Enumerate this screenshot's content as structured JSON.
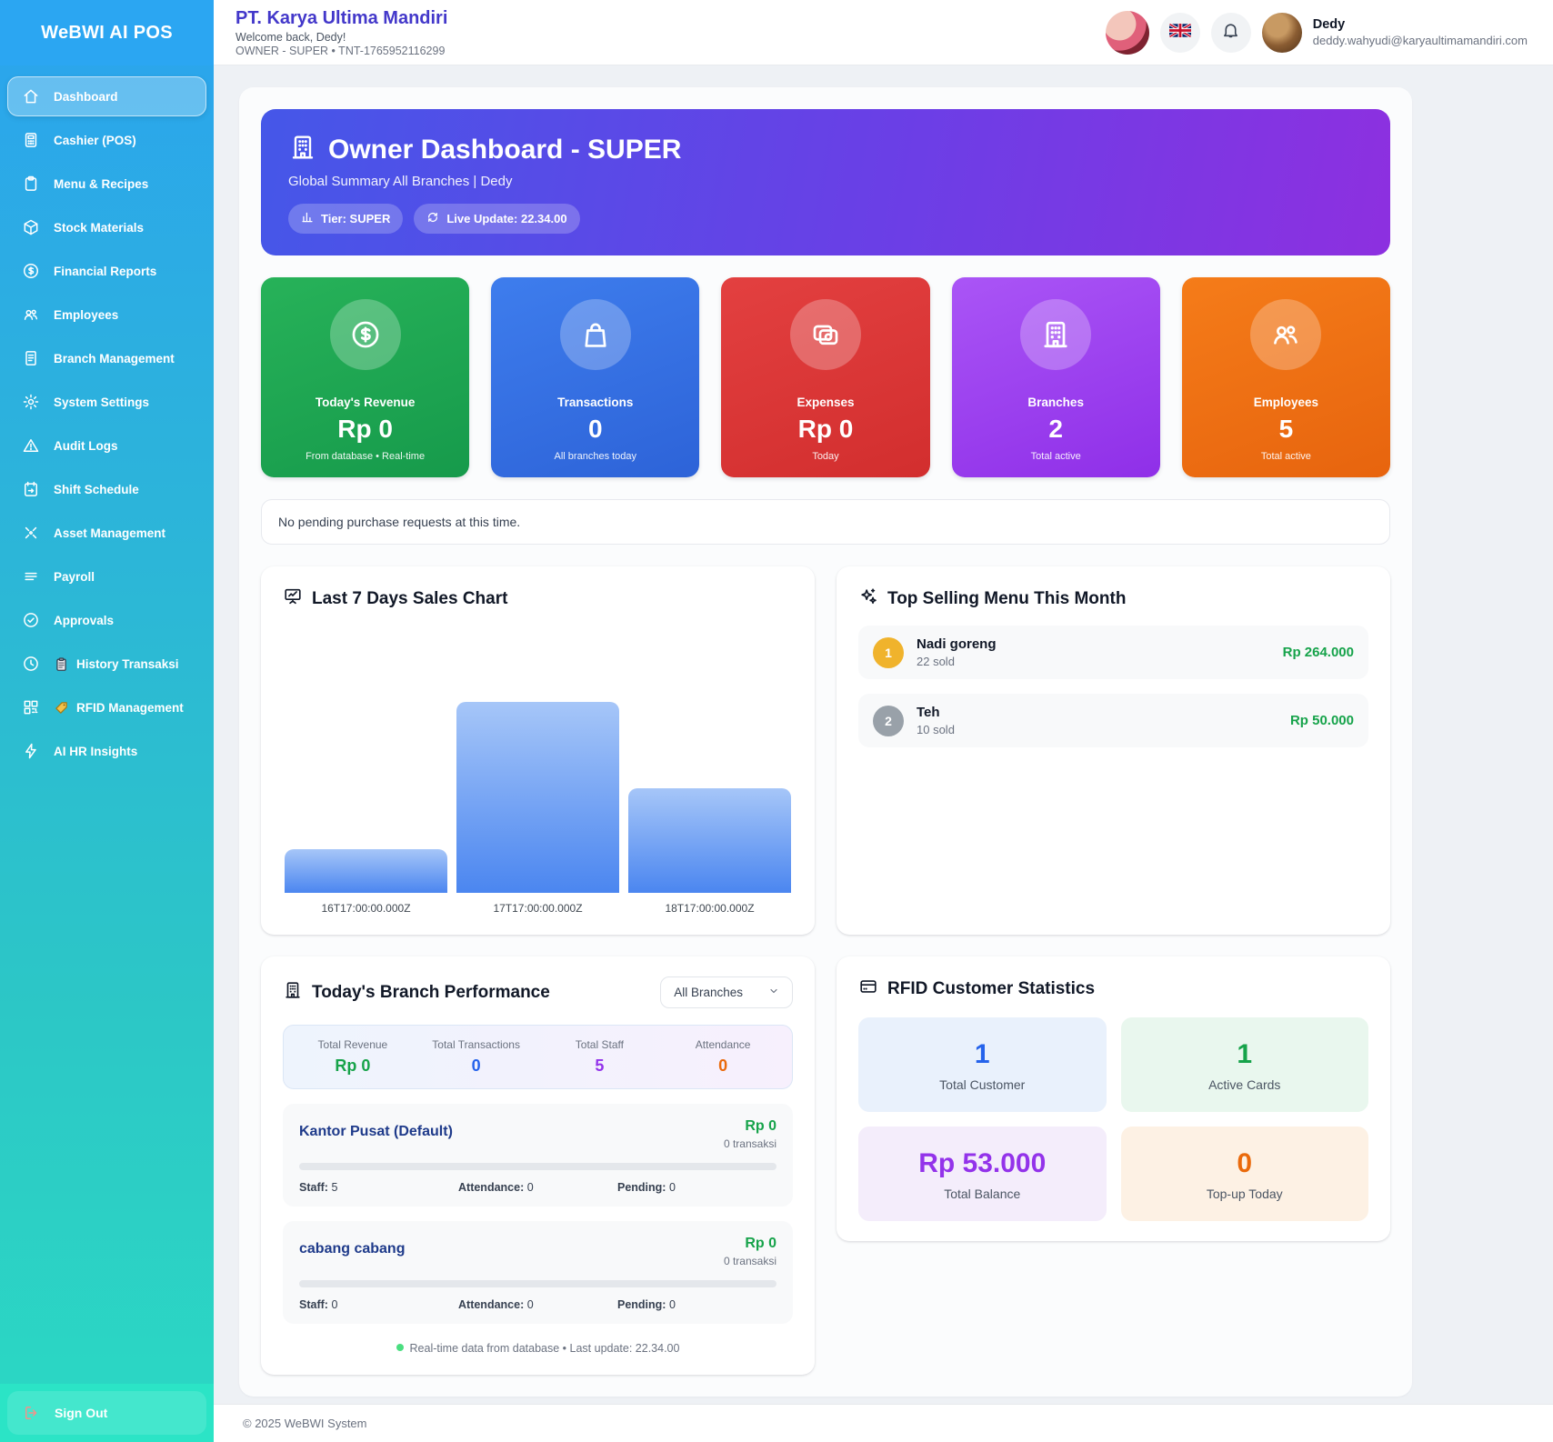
{
  "sidebar": {
    "logo": "WeBWI AI POS",
    "items": [
      {
        "label": "Dashboard",
        "icon": "home-icon",
        "active": true
      },
      {
        "label": "Cashier (POS)",
        "icon": "calculator-icon"
      },
      {
        "label": "Menu & Recipes",
        "icon": "clipboard-icon"
      },
      {
        "label": "Stock Materials",
        "icon": "cube-icon"
      },
      {
        "label": "Financial Reports",
        "icon": "dollar-circle-icon"
      },
      {
        "label": "Employees",
        "icon": "people-icon"
      },
      {
        "label": "Branch Management",
        "icon": "document-icon"
      },
      {
        "label": "System Settings",
        "icon": "gear-icon"
      },
      {
        "label": "Audit Logs",
        "icon": "warning-triangle-icon"
      },
      {
        "label": "Shift Schedule",
        "icon": "calendar-icon"
      },
      {
        "label": "Asset Management",
        "icon": "asset-arrows-icon"
      },
      {
        "label": "Payroll",
        "icon": "lines-icon"
      },
      {
        "label": "Approvals",
        "icon": "check-circle-icon"
      },
      {
        "label": "History Transaksi",
        "icon": "clock-icon",
        "extra_icon": "clipboard-emoji"
      },
      {
        "label": "RFID Management",
        "icon": "qr-icon",
        "extra_icon": "tag-emoji"
      },
      {
        "label": "AI HR Insights",
        "icon": "lightning-icon"
      }
    ],
    "sign_out": "Sign Out"
  },
  "header": {
    "company": "PT. Karya Ultima Mandiri",
    "welcome": "Welcome back, Dedy!",
    "role_line": "OWNER - SUPER • TNT-1765952116299",
    "user": {
      "name": "Dedy",
      "email": "deddy.wahyudi@karyaultimamandiri.com"
    }
  },
  "hero": {
    "title": "Owner Dashboard - SUPER",
    "subtitle": "Global Summary All Branches | Dedy",
    "tier_badge": "Tier: SUPER",
    "live_badge": "Live Update: 22.34.00",
    "gradient": [
      "#4557e8",
      "#8d30e0"
    ]
  },
  "stats": [
    {
      "label": "Today's Revenue",
      "value": "Rp 0",
      "sub": "From database • Real-time",
      "color": "#1ea44c",
      "icon": "dollar-circle-icon"
    },
    {
      "label": "Transactions",
      "value": "0",
      "sub": "All branches today",
      "color": "#2f6bdf",
      "icon": "shopping-bag-icon"
    },
    {
      "label": "Expenses",
      "value": "Rp 0",
      "sub": "Today",
      "color": "#d93434",
      "icon": "cash-icon"
    },
    {
      "label": "Branches",
      "value": "2",
      "sub": "Total active",
      "color": "#9a3df0",
      "icon": "building-icon"
    },
    {
      "label": "Employees",
      "value": "5",
      "sub": "Total active",
      "color": "#ef6c0e",
      "icon": "people-icon"
    }
  ],
  "notice": {
    "text": "No pending purchase requests at this time."
  },
  "chart_data": {
    "type": "bar",
    "title": "Last 7 Days Sales Chart",
    "categories": [
      "16T17:00:00.000Z",
      "17T17:00:00.000Z",
      "18T17:00:00.000Z"
    ],
    "values": [
      17,
      75,
      41
    ],
    "xlabel": "",
    "ylabel": "",
    "ylim": [
      0,
      100
    ],
    "grid": false,
    "legend": "none",
    "bar_color_gradient": [
      "#a6c6f8",
      "#4b86f0"
    ]
  },
  "top_selling": {
    "title": "Top Selling Menu This Month",
    "items": [
      {
        "rank": "1",
        "name": "Nadi goreng",
        "sold": "22 sold",
        "amount": "Rp 264.000"
      },
      {
        "rank": "2",
        "name": "Teh",
        "sold": "10 sold",
        "amount": "Rp 50.000"
      }
    ]
  },
  "branch_performance": {
    "title": "Today's Branch Performance",
    "filter": "All Branches",
    "summary": [
      {
        "label": "Total Revenue",
        "value": "Rp 0",
        "color": "#17a34a"
      },
      {
        "label": "Total Transactions",
        "value": "0",
        "color": "#2563eb"
      },
      {
        "label": "Total Staff",
        "value": "5",
        "color": "#9333ea"
      },
      {
        "label": "Attendance",
        "value": "0",
        "color": "#ea6a0c"
      }
    ],
    "branches": [
      {
        "name": "Kantor Pusat (Default)",
        "revenue": "Rp 0",
        "transactions": "0 transaksi",
        "staff_label": "Staff:",
        "staff_value": "5",
        "attendance_label": "Attendance:",
        "attendance_value": "0",
        "pending_label": "Pending:",
        "pending_value": "0"
      },
      {
        "name": "cabang cabang",
        "revenue": "Rp 0",
        "transactions": "0 transaksi",
        "staff_label": "Staff:",
        "staff_value": "0",
        "attendance_label": "Attendance:",
        "attendance_value": "0",
        "pending_label": "Pending:",
        "pending_value": "0"
      }
    ],
    "footer_note": "Real-time data from database • Last update: 22.34.00"
  },
  "rfid_stats": {
    "title": "RFID Customer Statistics",
    "tiles": [
      {
        "value": "1",
        "label": "Total Customer",
        "color": "#2563eb",
        "bg": "#e9f1fc"
      },
      {
        "value": "1",
        "label": "Active Cards",
        "color": "#16a34a",
        "bg": "#e9f7ee"
      },
      {
        "value": "Rp 53.000",
        "label": "Total Balance",
        "color": "#9333ea",
        "bg": "#f4edfb"
      },
      {
        "value": "0",
        "label": "Top-up Today",
        "color": "#ea6a0c",
        "bg": "#fdf1e4"
      }
    ]
  },
  "footer": {
    "copyright": "© 2025 WeBWI System"
  }
}
